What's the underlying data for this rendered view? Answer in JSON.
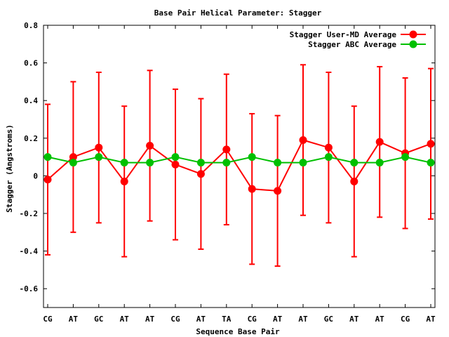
{
  "chart_data": {
    "type": "line",
    "title": "Base Pair Helical Parameter: Stagger",
    "xlabel": "Sequence Base Pair",
    "ylabel": "Stagger (Angstroms)",
    "ylim": [
      -0.7,
      0.8
    ],
    "yticks": [
      -0.6,
      -0.4,
      -0.2,
      0,
      0.2,
      0.4,
      0.6,
      0.8
    ],
    "ytick_labels": [
      "-0.6",
      "-0.4",
      "-0.2",
      "0",
      "0.2",
      "0.4",
      "0.6",
      "0.8"
    ],
    "categories": [
      "CG",
      "AT",
      "GC",
      "AT",
      "AT",
      "CG",
      "AT",
      "TA",
      "CG",
      "AT",
      "AT",
      "GC",
      "AT",
      "AT",
      "CG",
      "AT"
    ],
    "legend_position": "top-right",
    "grid": false,
    "series": [
      {
        "name": "Stagger User-MD Average",
        "color": "#ff0000",
        "values": [
          -0.02,
          0.1,
          0.15,
          -0.03,
          0.16,
          0.06,
          0.01,
          0.14,
          -0.07,
          -0.08,
          0.19,
          0.15,
          -0.03,
          0.18,
          0.12,
          0.17
        ],
        "err_low": [
          -0.42,
          -0.3,
          -0.25,
          -0.43,
          -0.24,
          -0.34,
          -0.39,
          -0.26,
          -0.47,
          -0.48,
          -0.21,
          -0.25,
          -0.43,
          -0.22,
          -0.28,
          -0.23
        ],
        "err_high": [
          0.38,
          0.5,
          0.55,
          0.37,
          0.56,
          0.46,
          0.41,
          0.54,
          0.33,
          0.32,
          0.59,
          0.55,
          0.37,
          0.58,
          0.52,
          0.57
        ]
      },
      {
        "name": "Stagger ABC Average",
        "color": "#00c000",
        "values": [
          0.1,
          0.07,
          0.1,
          0.07,
          0.07,
          0.1,
          0.07,
          0.07,
          0.1,
          0.07,
          0.07,
          0.1,
          0.07,
          0.07,
          0.1,
          0.07
        ]
      }
    ]
  }
}
